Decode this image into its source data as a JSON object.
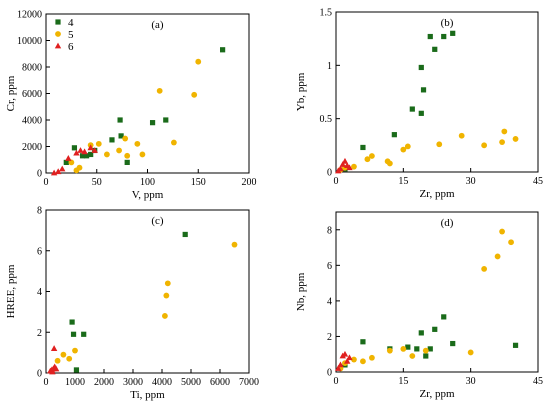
{
  "colors": {
    "series_4": "#1a6b1a",
    "series_5": "#f0b400",
    "series_6": "#e02020",
    "axis": "#000000"
  },
  "chart_data": [
    {
      "type": "scatter",
      "panel": "(a)",
      "xlabel": "V, ppm",
      "ylabel": "Cr, ppm",
      "xlim": [
        0,
        200
      ],
      "ylim": [
        0,
        12000
      ],
      "xticks": [
        0,
        50,
        100,
        150,
        200
      ],
      "yticks": [
        0,
        2000,
        4000,
        6000,
        8000,
        10000,
        12000
      ],
      "legend": {
        "placement": "top-left",
        "entries": [
          "4",
          "5",
          "6"
        ]
      },
      "series": [
        {
          "name": "4",
          "marker": "square",
          "points": [
            [
              20,
              800
            ],
            [
              28,
              1900
            ],
            [
              36,
              1300
            ],
            [
              40,
              1300
            ],
            [
              44,
              1400
            ],
            [
              48,
              1700
            ],
            [
              65,
              2500
            ],
            [
              73,
              4000
            ],
            [
              74,
              2800
            ],
            [
              80,
              800
            ],
            [
              105,
              3800
            ],
            [
              118,
              4000
            ],
            [
              174,
              9300
            ]
          ]
        },
        {
          "name": "5",
          "marker": "circle",
          "points": [
            [
              25,
              800
            ],
            [
              30,
              200
            ],
            [
              33,
              400
            ],
            [
              44,
              2100
            ],
            [
              52,
              2200
            ],
            [
              60,
              1400
            ],
            [
              72,
              1700
            ],
            [
              78,
              2600
            ],
            [
              80,
              1300
            ],
            [
              90,
              2200
            ],
            [
              95,
              1400
            ],
            [
              112,
              6200
            ],
            [
              126,
              2300
            ],
            [
              146,
              5900
            ],
            [
              150,
              8400
            ]
          ]
        },
        {
          "name": "6",
          "marker": "triangle",
          "points": [
            [
              8,
              0
            ],
            [
              12,
              100
            ],
            [
              16,
              300
            ],
            [
              22,
              1100
            ],
            [
              30,
              1500
            ],
            [
              34,
              1700
            ],
            [
              38,
              1600
            ],
            [
              44,
              1900
            ],
            [
              48,
              1700
            ]
          ]
        }
      ]
    },
    {
      "type": "scatter",
      "panel": "(b)",
      "xlabel": "Zr, ppm",
      "ylabel": "Yb, ppm",
      "xlim": [
        0,
        45
      ],
      "ylim": [
        0,
        1.5
      ],
      "xticks": [
        0,
        15,
        30,
        45
      ],
      "yticks": [
        0,
        0.5,
        1.0,
        1.5
      ],
      "series": [
        {
          "name": "4",
          "marker": "square",
          "points": [
            [
              2,
              0.03
            ],
            [
              6,
              0.23
            ],
            [
              13,
              0.35
            ],
            [
              17,
              0.59
            ],
            [
              19,
              0.55
            ],
            [
              19.5,
              0.77
            ],
            [
              19,
              0.98
            ],
            [
              21,
              1.27
            ],
            [
              22,
              1.15
            ],
            [
              24,
              1.27
            ],
            [
              26,
              1.3
            ]
          ]
        },
        {
          "name": "5",
          "marker": "circle",
          "points": [
            [
              1,
              0.02
            ],
            [
              2,
              0.04
            ],
            [
              4,
              0.05
            ],
            [
              7,
              0.12
            ],
            [
              8,
              0.15
            ],
            [
              11.5,
              0.1
            ],
            [
              12,
              0.08
            ],
            [
              15,
              0.21
            ],
            [
              16,
              0.24
            ],
            [
              23,
              0.26
            ],
            [
              28,
              0.34
            ],
            [
              33,
              0.25
            ],
            [
              37,
              0.28
            ],
            [
              37.5,
              0.38
            ],
            [
              40,
              0.31
            ]
          ]
        },
        {
          "name": "6",
          "marker": "triangle",
          "points": [
            [
              0.5,
              0.01
            ],
            [
              1,
              0.03
            ],
            [
              1.5,
              0.07
            ],
            [
              2,
              0.1
            ],
            [
              2.5,
              0.06
            ],
            [
              3,
              0.04
            ]
          ]
        }
      ]
    },
    {
      "type": "scatter",
      "panel": "(c)",
      "xlabel": "Ti, ppm",
      "ylabel": "HREE, ppm",
      "xlim": [
        0,
        7000
      ],
      "ylim": [
        0,
        8
      ],
      "xticks": [
        0,
        1000,
        2000,
        3000,
        4000,
        5000,
        6000,
        7000
      ],
      "yticks": [
        0,
        2,
        4,
        6,
        8
      ],
      "series": [
        {
          "name": "4",
          "marker": "square",
          "points": [
            [
              900,
              2.5
            ],
            [
              950,
              1.9
            ],
            [
              1050,
              0.15
            ],
            [
              1300,
              1.9
            ],
            [
              4800,
              6.8
            ]
          ]
        },
        {
          "name": "5",
          "marker": "circle",
          "points": [
            [
              200,
              0.1
            ],
            [
              400,
              0.6
            ],
            [
              600,
              0.9
            ],
            [
              800,
              0.7
            ],
            [
              1000,
              1.1
            ],
            [
              4100,
              2.8
            ],
            [
              4150,
              3.8
            ],
            [
              4200,
              4.4
            ],
            [
              6500,
              6.3
            ]
          ]
        },
        {
          "name": "6",
          "marker": "triangle",
          "points": [
            [
              150,
              0.1
            ],
            [
              200,
              0.15
            ],
            [
              220,
              0.05
            ],
            [
              250,
              0.2
            ],
            [
              280,
              1.2
            ],
            [
              300,
              0.3
            ],
            [
              350,
              0.2
            ]
          ]
        }
      ]
    },
    {
      "type": "scatter",
      "panel": "(d)",
      "xlabel": "Zr, ppm",
      "ylabel": "Nb, ppm",
      "xlim": [
        0,
        45
      ],
      "ylim": [
        0,
        9
      ],
      "xticks": [
        0,
        15,
        30,
        45
      ],
      "yticks": [
        0,
        2,
        4,
        6,
        8
      ],
      "series": [
        {
          "name": "4",
          "marker": "square",
          "points": [
            [
              2,
              0.4
            ],
            [
              6,
              1.7
            ],
            [
              12,
              1.3
            ],
            [
              16,
              1.4
            ],
            [
              18,
              1.3
            ],
            [
              19,
              2.2
            ],
            [
              20,
              0.9
            ],
            [
              21,
              1.3
            ],
            [
              22,
              2.4
            ],
            [
              24,
              3.1
            ],
            [
              26,
              1.6
            ],
            [
              40,
              1.5
            ]
          ]
        },
        {
          "name": "5",
          "marker": "circle",
          "points": [
            [
              1,
              0.2
            ],
            [
              2,
              0.5
            ],
            [
              4,
              0.7
            ],
            [
              6,
              0.6
            ],
            [
              8,
              0.8
            ],
            [
              12,
              1.2
            ],
            [
              15,
              1.3
            ],
            [
              17,
              0.9
            ],
            [
              20,
              1.2
            ],
            [
              30,
              1.1
            ],
            [
              33,
              5.8
            ],
            [
              36,
              6.5
            ],
            [
              37,
              7.9
            ],
            [
              39,
              7.3
            ]
          ]
        },
        {
          "name": "6",
          "marker": "triangle",
          "points": [
            [
              0.5,
              0.2
            ],
            [
              1,
              0.4
            ],
            [
              1.5,
              0.9
            ],
            [
              2,
              1.0
            ],
            [
              2.5,
              0.6
            ],
            [
              3,
              0.8
            ]
          ]
        }
      ]
    }
  ]
}
